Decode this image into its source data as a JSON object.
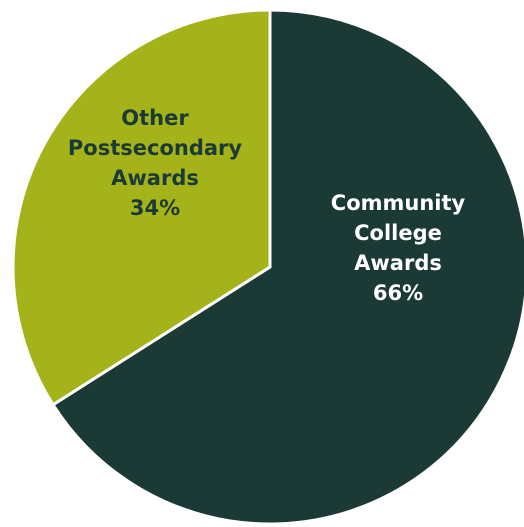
{
  "chart_data": {
    "type": "pie",
    "title": "",
    "slices": [
      {
        "label_lines": [
          "Community",
          "College",
          "Awards"
        ],
        "value": 66,
        "value_label": "66%",
        "color": "#1b3a35",
        "text_color": "#ffffff"
      },
      {
        "label_lines": [
          "Other",
          "Postsecondary",
          "Awards"
        ],
        "value": 34,
        "value_label": "34%",
        "color": "#a5b31a",
        "text_color": "#1b3a35"
      }
    ],
    "start_angle_deg": 0,
    "direction": "clockwise",
    "slice_border_color": "#ffffff"
  }
}
